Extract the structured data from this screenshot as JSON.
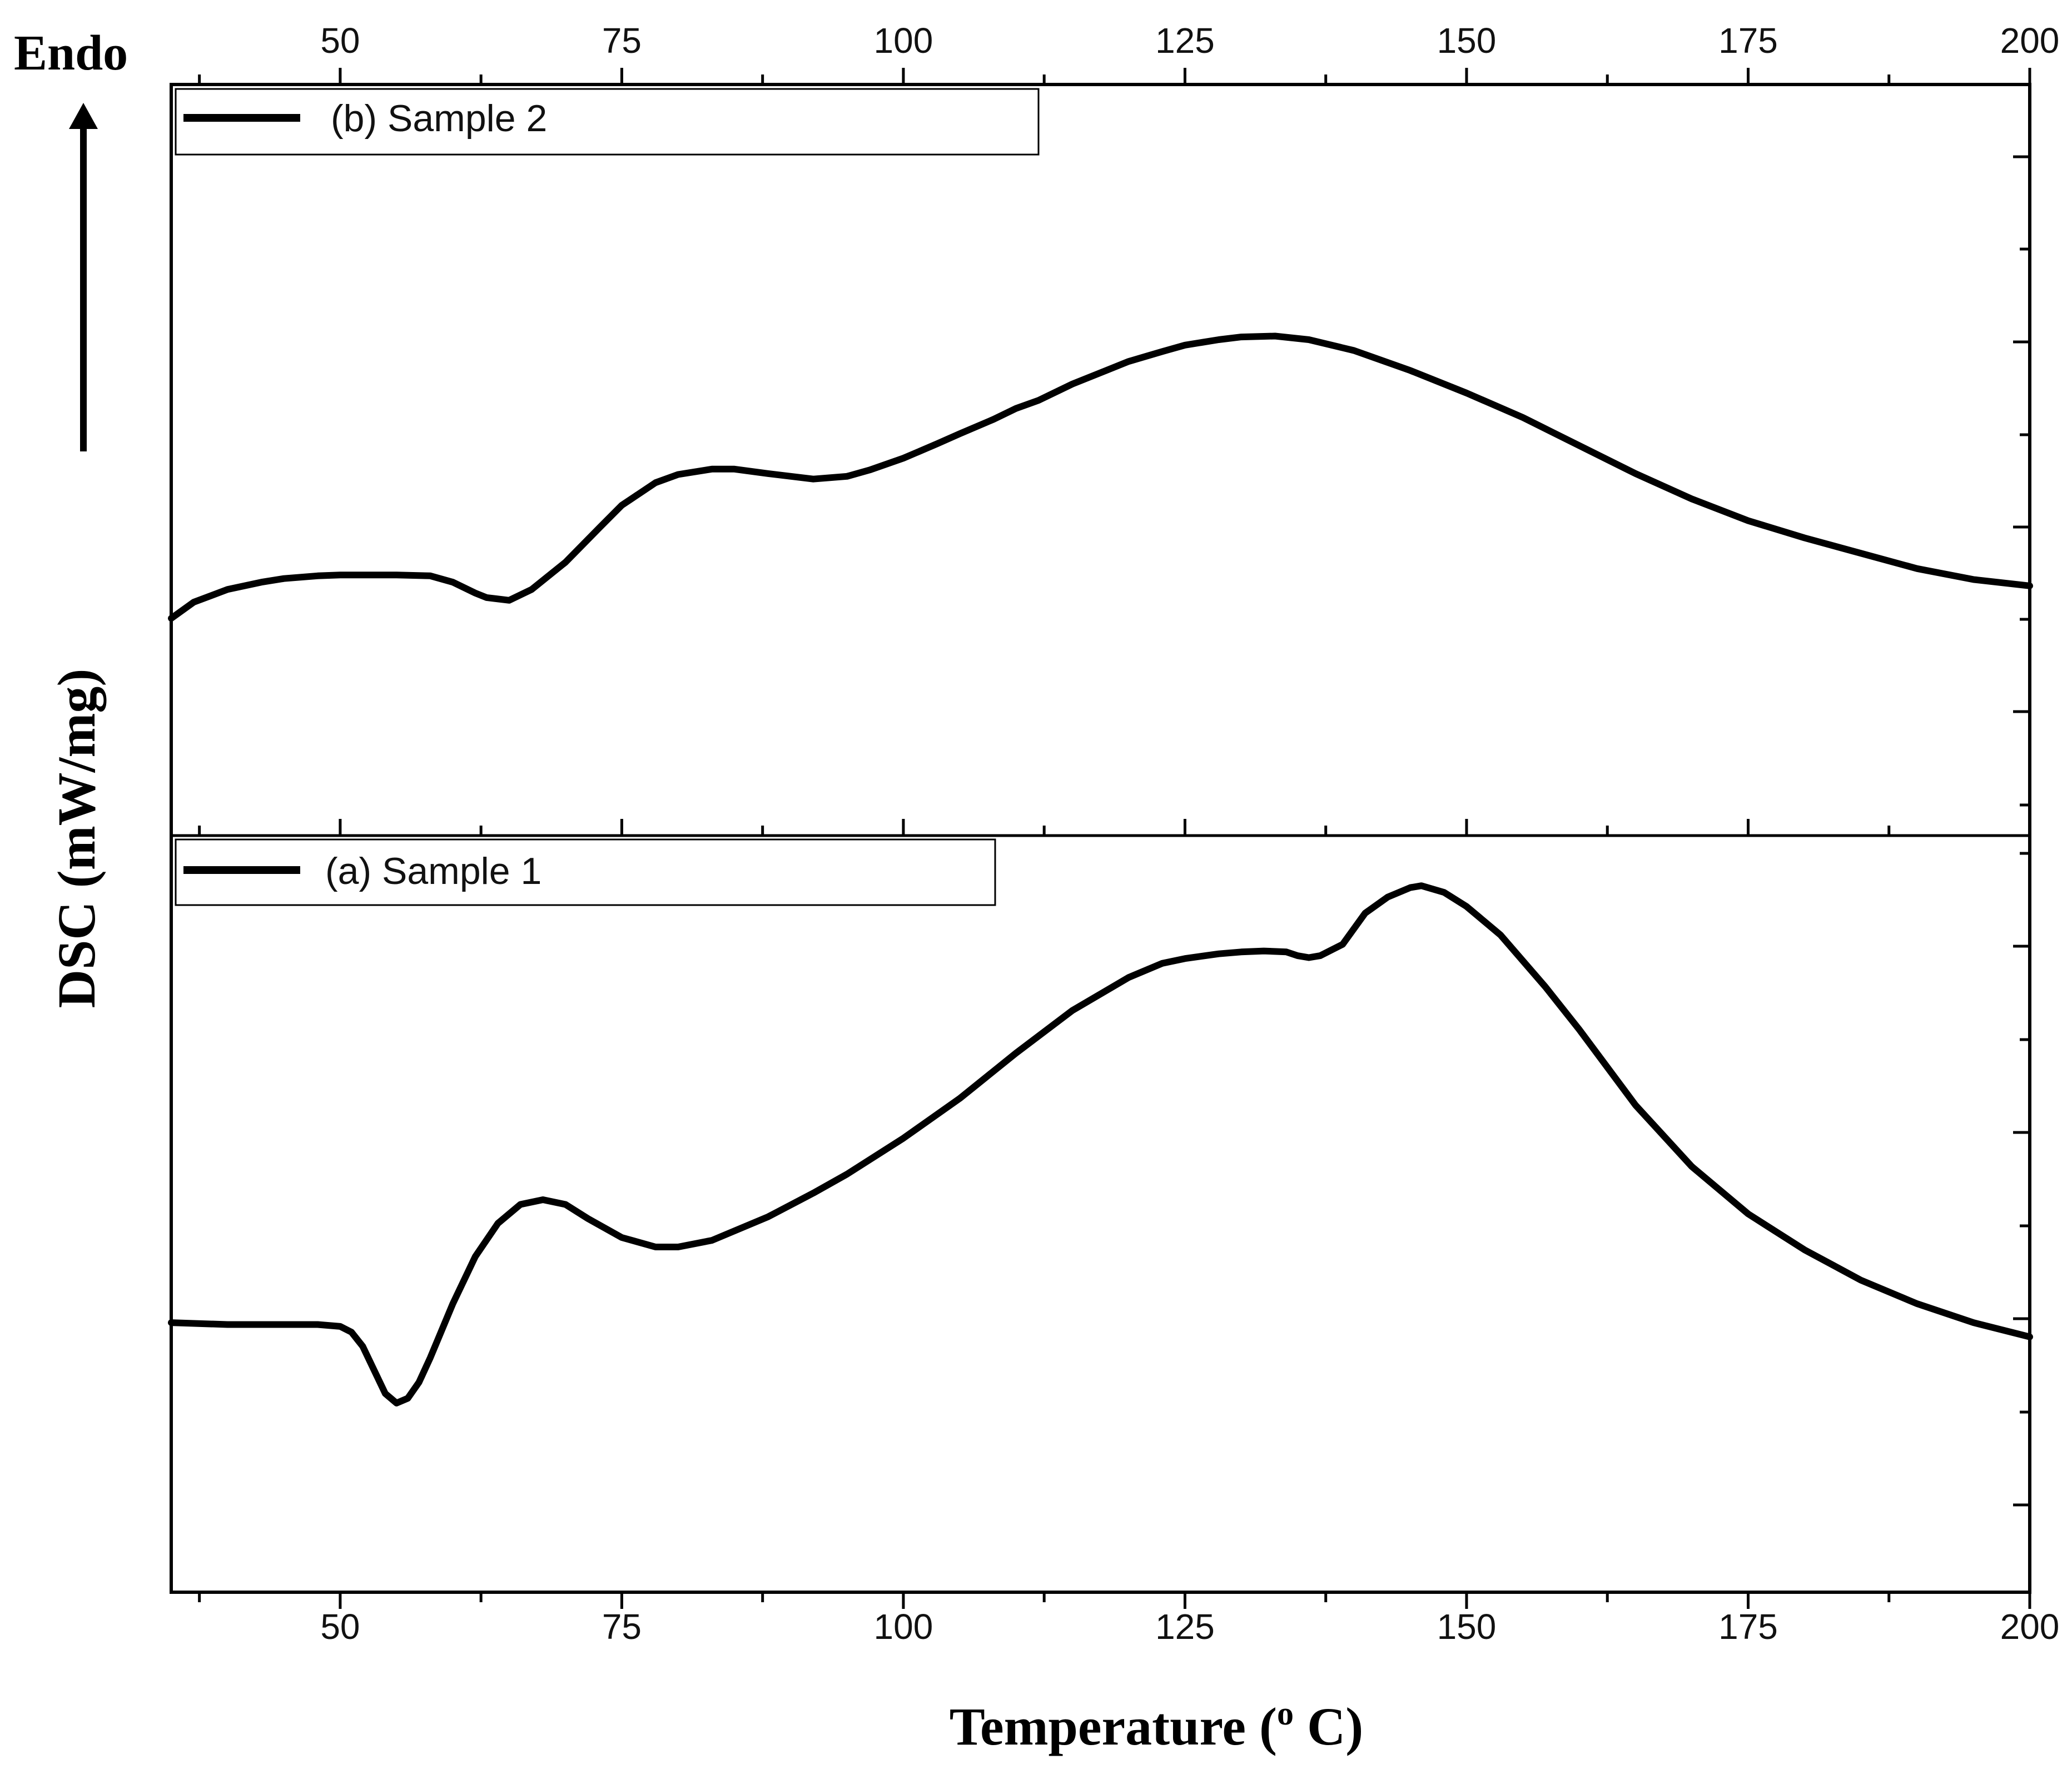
{
  "chart_data": [
    {
      "panel": "top",
      "type": "line",
      "legend_placement": "top-left",
      "series": [
        {
          "name": "(b) Sample 2",
          "color": "#000000",
          "x": [
            35,
            37,
            40,
            43,
            45,
            48,
            50,
            55,
            58,
            60,
            62,
            63,
            65,
            67,
            70,
            73,
            75,
            78,
            80,
            83,
            85,
            88,
            92,
            95,
            97,
            100,
            103,
            105,
            108,
            110,
            112,
            115,
            118,
            120,
            123,
            125,
            128,
            130,
            133,
            136,
            140,
            145,
            150,
            155,
            160,
            165,
            170,
            175,
            180,
            185,
            190,
            195,
            200
          ],
          "y": [
            2.4,
            2.58,
            2.72,
            2.8,
            2.84,
            2.87,
            2.88,
            2.88,
            2.87,
            2.8,
            2.68,
            2.63,
            2.6,
            2.72,
            3.02,
            3.4,
            3.65,
            3.9,
            3.99,
            4.05,
            4.05,
            4.0,
            3.94,
            3.97,
            4.04,
            4.17,
            4.33,
            4.44,
            4.6,
            4.72,
            4.81,
            4.99,
            5.14,
            5.24,
            5.35,
            5.42,
            5.48,
            5.51,
            5.52,
            5.48,
            5.36,
            5.14,
            4.89,
            4.62,
            4.31,
            4.0,
            3.72,
            3.48,
            3.29,
            3.12,
            2.95,
            2.83,
            2.76
          ]
        }
      ],
      "x_ticks": [
        "50",
        "75",
        "100",
        "125",
        "150",
        "175",
        "200"
      ],
      "xlim": [
        35,
        200
      ],
      "ylim": [
        0,
        8.3
      ]
    },
    {
      "panel": "bottom",
      "type": "line",
      "legend_placement": "top-left",
      "series": [
        {
          "name": "(a) Sample 1",
          "color": "#000000",
          "x": [
            35,
            40,
            45,
            48,
            50,
            51,
            52,
            53,
            54,
            55,
            56,
            57,
            58,
            60,
            62,
            64,
            66,
            68,
            70,
            72,
            75,
            78,
            80,
            83,
            85,
            88,
            92,
            95,
            100,
            105,
            110,
            115,
            120,
            123,
            125,
            128,
            130,
            132,
            134,
            135,
            136,
            137,
            138,
            139,
            141,
            143,
            145,
            146,
            148,
            150,
            153,
            157,
            160,
            165,
            170,
            175,
            180,
            185,
            190,
            195,
            200
          ],
          "y": [
            2.85,
            2.83,
            2.83,
            2.83,
            2.81,
            2.75,
            2.6,
            2.35,
            2.1,
            2.0,
            2.05,
            2.22,
            2.48,
            3.05,
            3.55,
            3.9,
            4.1,
            4.15,
            4.1,
            3.95,
            3.75,
            3.65,
            3.65,
            3.72,
            3.82,
            3.97,
            4.22,
            4.42,
            4.8,
            5.22,
            5.7,
            6.15,
            6.5,
            6.65,
            6.7,
            6.75,
            6.77,
            6.78,
            6.77,
            6.73,
            6.71,
            6.73,
            6.79,
            6.85,
            7.18,
            7.35,
            7.45,
            7.47,
            7.4,
            7.25,
            6.95,
            6.4,
            5.95,
            5.15,
            4.5,
            4.0,
            3.62,
            3.3,
            3.05,
            2.85,
            2.7
          ]
        }
      ],
      "x_ticks": [
        "50",
        "75",
        "100",
        "125",
        "150",
        "175",
        "200"
      ],
      "xlim": [
        35,
        200
      ],
      "ylim": [
        0,
        8.0
      ]
    }
  ],
  "axis": {
    "xlabel": "Temperature (o C)",
    "xlabel_main": "Temperature (",
    "xlabel_sup": "o",
    "xlabel_end": " C)",
    "ylabel": "DSC (mW/mg)"
  },
  "annotation": {
    "endo_label": "Endo",
    "arrow_direction": "up"
  }
}
